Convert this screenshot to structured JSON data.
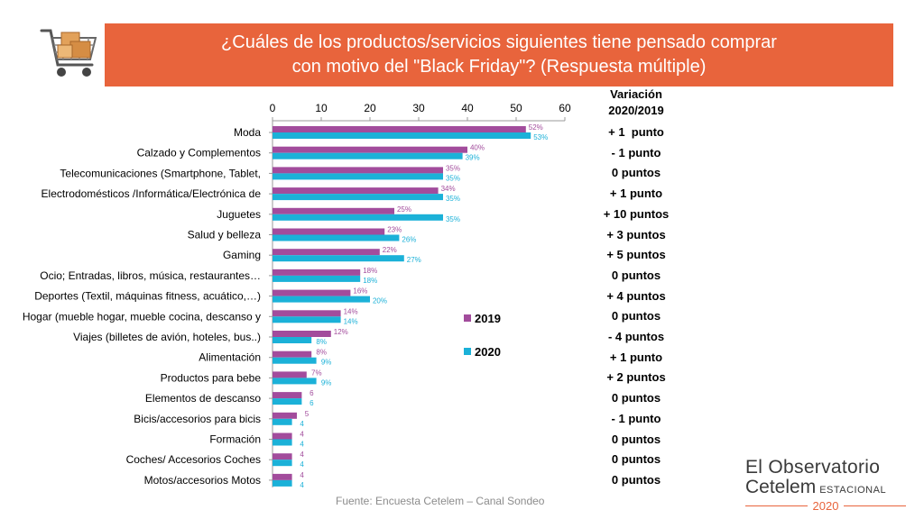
{
  "title": {
    "line1": "¿Cuáles de los productos/servicios siguientes tiene pensado comprar",
    "line2": "con motivo del \"Black Friday\"? (Respuesta múltiple)"
  },
  "icon": "shopping-cart-icon",
  "variation_header": {
    "line1": "Variación",
    "line2": "2020/2019"
  },
  "colors": {
    "series_2019": "#a24c9c",
    "series_2020": "#1bb1d8",
    "banner": "#e8643c"
  },
  "chart_data": {
    "type": "bar",
    "orientation": "horizontal",
    "xlim": [
      0,
      60
    ],
    "xticks": [
      0,
      10,
      20,
      30,
      40,
      50,
      60
    ],
    "grid": false,
    "legend": "right",
    "categories": [
      "Moda",
      "Calzado y Complementos",
      "Telecomunicaciones (Smartphone, Tablet,",
      "Electrodomésticos /Informática/Electrónica de",
      "Juguetes",
      "Salud y belleza",
      "Gaming",
      "Ocio; Entradas, libros, música, restaurantes…",
      "Deportes (Textil, máquinas fitness, acuático,…)",
      "Hogar (mueble hogar, mueble cocina, descanso y",
      "Viajes (billetes de avión, hoteles, bus..)",
      "Alimentación",
      "Productos para bebe",
      "Elementos de descanso",
      "Bicis/accesorios para bicis",
      "Formación",
      "Coches/ Accesorios Coches",
      "Motos/accesorios Motos"
    ],
    "series": [
      {
        "name": "2019",
        "values": [
          52,
          40,
          35,
          34,
          25,
          23,
          22,
          18,
          16,
          14,
          12,
          8,
          7,
          6,
          5,
          4,
          4,
          4
        ],
        "labels": [
          "52%",
          "40%",
          "35%",
          "34%",
          "25%",
          "23%",
          "22%",
          "18%",
          "16%",
          "14%",
          "12%",
          "8%",
          "7%",
          "6",
          "5",
          "4",
          "4",
          "4"
        ]
      },
      {
        "name": "2020",
        "values": [
          53,
          39,
          35,
          35,
          35,
          26,
          27,
          18,
          20,
          14,
          8,
          9,
          9,
          6,
          4,
          4,
          4,
          4
        ],
        "labels": [
          "53%",
          "39%",
          "35%",
          "35%",
          "35%",
          "26%",
          "27%",
          "18%",
          "20%",
          "14%",
          "8%",
          "9%",
          "9%",
          "6",
          "4",
          "4",
          "4",
          "4"
        ]
      }
    ],
    "variation": [
      "+ 1  punto",
      "- 1 punto",
      "0 puntos",
      "+ 1 punto",
      "+ 10 puntos",
      "+ 3 puntos",
      "+ 5 puntos",
      "0 puntos",
      "+ 4 puntos",
      "0 puntos",
      "- 4 puntos",
      "+ 1 punto",
      "+ 2 puntos",
      "0 puntos",
      "- 1 punto",
      "0 puntos",
      "0 puntos",
      "0 puntos"
    ]
  },
  "source": "Fuente: Encuesta Cetelem – Canal Sondeo",
  "brand": {
    "line1": "El Observatorio",
    "line2": "Cetelem",
    "line2_small": "ESTACIONAL",
    "year": "2020"
  }
}
